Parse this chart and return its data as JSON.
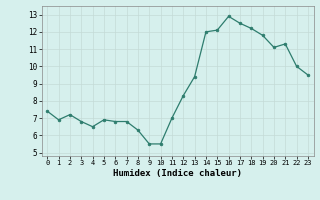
{
  "x": [
    0,
    1,
    2,
    3,
    4,
    5,
    6,
    7,
    8,
    9,
    10,
    11,
    12,
    13,
    14,
    15,
    16,
    17,
    18,
    19,
    20,
    21,
    22,
    23
  ],
  "y": [
    7.4,
    6.9,
    7.2,
    6.8,
    6.5,
    6.9,
    6.8,
    6.8,
    6.3,
    5.5,
    5.5,
    7.0,
    8.3,
    9.4,
    12.0,
    12.1,
    12.9,
    12.5,
    12.2,
    11.8,
    11.1,
    11.3,
    10.0,
    9.5
  ],
  "x_labels": [
    "0",
    "1",
    "2",
    "3",
    "4",
    "5",
    "6",
    "7",
    "8",
    "9",
    "10",
    "11",
    "12",
    "13",
    "14",
    "15",
    "16",
    "17",
    "18",
    "19",
    "20",
    "21",
    "22",
    "23"
  ],
  "xlabel": "Humidex (Indice chaleur)",
  "line_color": "#2e7d6e",
  "marker_color": "#2e7d6e",
  "bg_color": "#d6f0ed",
  "grid_color": "#c4dbd7",
  "ylim": [
    4.8,
    13.5
  ],
  "yticks": [
    5,
    6,
    7,
    8,
    9,
    10,
    11,
    12,
    13
  ],
  "xlim": [
    -0.5,
    23.5
  ]
}
